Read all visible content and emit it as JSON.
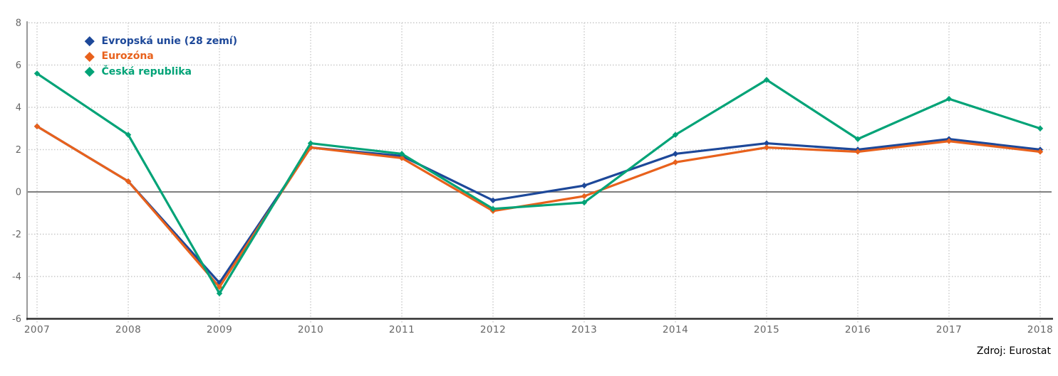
{
  "chart_data": {
    "type": "line",
    "title": "",
    "categories": [
      "2007",
      "2008",
      "2009",
      "2010",
      "2011",
      "2012",
      "2013",
      "2014",
      "2015",
      "2016",
      "2017",
      "2018"
    ],
    "series": [
      {
        "name": "Evropská unie (28 zemí)",
        "color": "#1d4899",
        "values": [
          3.1,
          0.5,
          -4.3,
          2.1,
          1.7,
          -0.4,
          0.3,
          1.8,
          2.3,
          2.0,
          2.5,
          2.0
        ]
      },
      {
        "name": "Eurozóna",
        "color": "#e8611c",
        "values": [
          3.1,
          0.5,
          -4.5,
          2.1,
          1.6,
          -0.9,
          -0.2,
          1.4,
          2.1,
          1.9,
          2.4,
          1.9
        ]
      },
      {
        "name": "Česká republika",
        "color": "#02a377",
        "values": [
          5.6,
          2.7,
          -4.8,
          2.3,
          1.8,
          -0.8,
          -0.5,
          2.7,
          5.3,
          2.5,
          4.4,
          3.0
        ]
      }
    ],
    "xlabel": "",
    "ylabel": "",
    "ylim": [
      -6,
      8
    ],
    "yticks": [
      8,
      6,
      4,
      2,
      0,
      -2,
      -4,
      -6
    ],
    "grid": "dotted-horizontal-and-vertical",
    "legend_position": "top-left-inside",
    "source": "Zdroj: Eurostat"
  },
  "colors": {
    "grid_line": "#c9c9c9",
    "zero_line": "#7f7f7f",
    "x_axis_line": "#2e2e2e",
    "y_axis_line": "#9a9a9a",
    "tick_text": "#666666",
    "source_text": "#000000"
  }
}
